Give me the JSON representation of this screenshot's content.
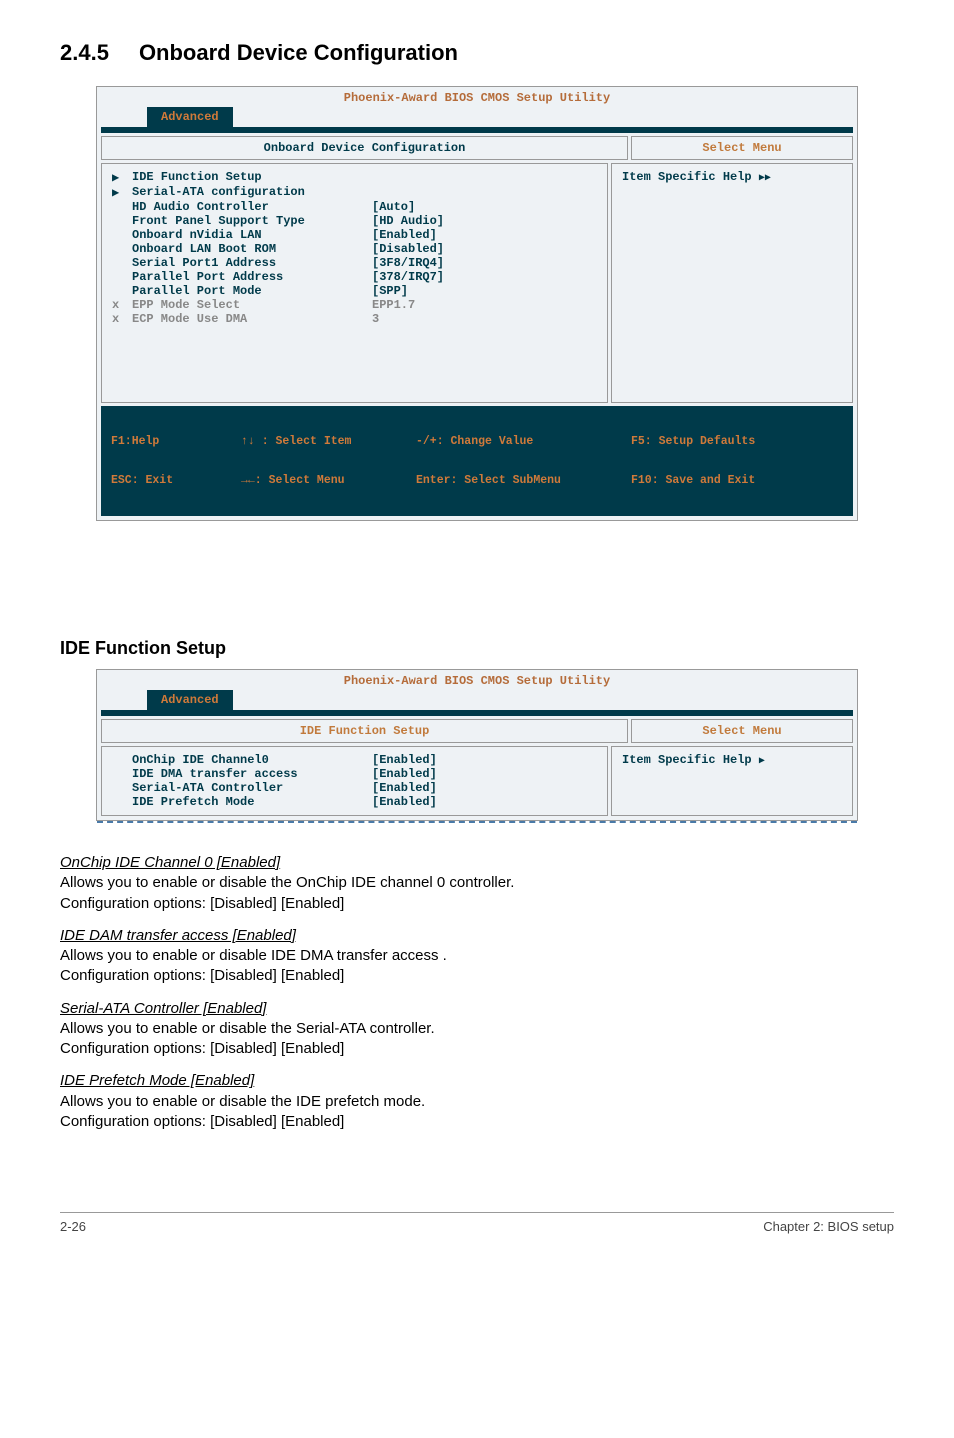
{
  "section": {
    "number": "2.4.5",
    "title": "Onboard Device Configuration"
  },
  "bios1": {
    "toptitle": "Phoenix-Award BIOS CMOS Setup Utility",
    "tab": "Advanced",
    "panel_title": "Onboard Device Configuration",
    "select_menu": "Select Menu",
    "help": "Item Specific Help ",
    "rows": [
      {
        "marker": "▶",
        "label": "IDE Function Setup",
        "value": "",
        "cls": "blue"
      },
      {
        "marker": "▶",
        "label": "Serial-ATA configuration",
        "value": "",
        "cls": "blue"
      },
      {
        "marker": " ",
        "label": "HD Audio Controller",
        "value": "[Auto]",
        "cls": "blue"
      },
      {
        "marker": " ",
        "label": "Front Panel Support Type",
        "value": "[HD Audio]",
        "cls": "blue"
      },
      {
        "marker": " ",
        "label": "Onboard nVidia LAN",
        "value": "[Enabled]",
        "cls": "blue"
      },
      {
        "marker": " ",
        "label": "Onboard LAN Boot ROM",
        "value": "[Disabled]",
        "cls": "blue"
      },
      {
        "marker": " ",
        "label": "Serial Port1 Address",
        "value": "[3F8/IRQ4]",
        "cls": "blue"
      },
      {
        "marker": " ",
        "label": "Parallel Port Address",
        "value": "[378/IRQ7]",
        "cls": "blue"
      },
      {
        "marker": " ",
        "label": "Parallel Port Mode",
        "value": "[SPP]",
        "cls": "blue"
      },
      {
        "marker": "x",
        "label": "EPP Mode Select",
        "value": "EPP1.7",
        "cls": "gray"
      },
      {
        "marker": "x",
        "label": "ECP Mode Use DMA",
        "value": "3",
        "cls": "gray"
      }
    ],
    "footer": {
      "c1a": "F1:Help",
      "c1b": "ESC: Exit",
      "c2a": "↑↓ : Select Item",
      "c2b": "→←: Select Menu",
      "c3a": "-/+: Change Value",
      "c3b": "Enter: Select SubMenu",
      "c4a": "F5: Setup Defaults",
      "c4b": "F10: Save and Exit"
    }
  },
  "ide_heading": "IDE Function Setup",
  "bios2": {
    "toptitle": "Phoenix-Award BIOS CMOS Setup Utility",
    "tab": "Advanced",
    "panel_title": "IDE Function Setup",
    "select_menu": "Select Menu",
    "help": "Item Specific Help ",
    "rows": [
      {
        "marker": " ",
        "label": "OnChip IDE Channel0",
        "value": "[Enabled]",
        "cls": "blue"
      },
      {
        "marker": " ",
        "label": "IDE DMA transfer access",
        "value": "[Enabled]",
        "cls": "blue"
      },
      {
        "marker": " ",
        "label": "Serial-ATA Controller",
        "value": "[Enabled]",
        "cls": "blue"
      },
      {
        "marker": " ",
        "label": "IDE Prefetch Mode",
        "value": "[Enabled]",
        "cls": "blue"
      }
    ]
  },
  "explain": [
    {
      "title": "OnChip IDE Channel 0 [Enabled]",
      "l1": "Allows you to enable or disable the OnChip IDE channel 0 controller.",
      "l2": "Configuration options: [Disabled] [Enabled]"
    },
    {
      "title": "IDE DAM transfer access [Enabled]",
      "l1": "Allows you to enable or disable IDE DMA transfer access .",
      "l2": "Configuration options: [Disabled] [Enabled]"
    },
    {
      "title": "Serial-ATA Controller [Enabled]",
      "l1": "Allows you to enable or disable the Serial-ATA controller.",
      "l2": "Configuration options: [Disabled] [Enabled]"
    },
    {
      "title": "IDE Prefetch Mode [Enabled]",
      "l1": "Allows you to enable or disable the IDE prefetch mode.",
      "l2": "Configuration options: [Disabled] [Enabled]"
    }
  ],
  "pagefoot": {
    "left": "2-26",
    "right": "Chapter 2: BIOS setup"
  }
}
